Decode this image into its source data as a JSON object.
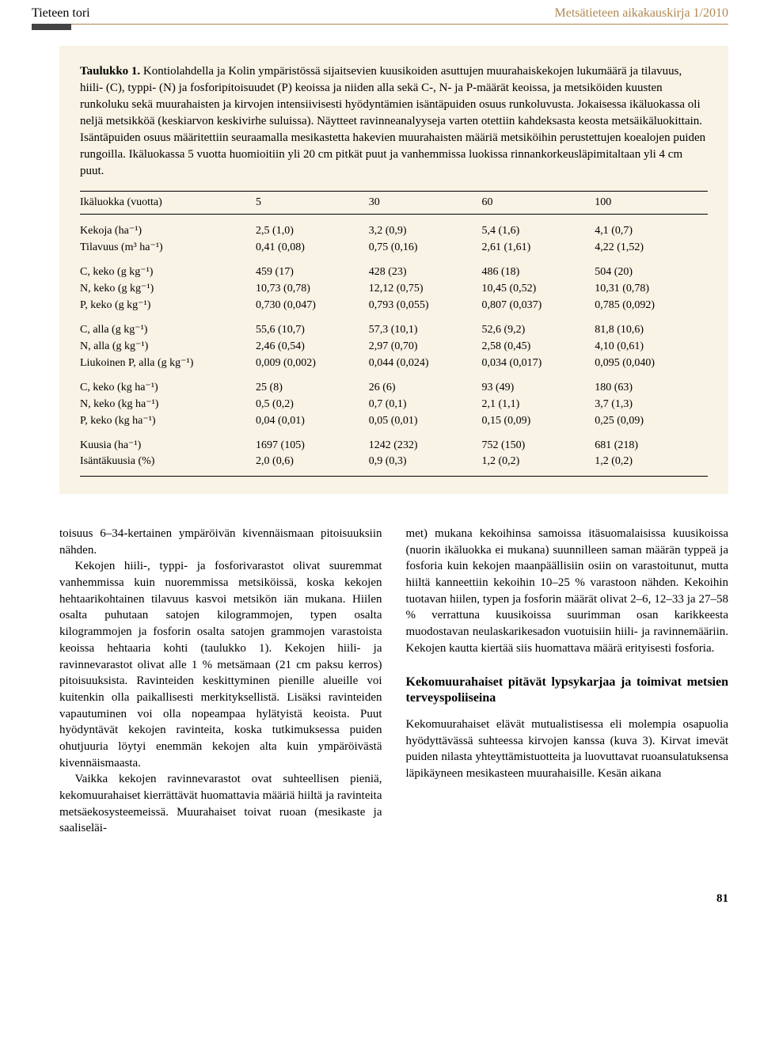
{
  "header": {
    "left": "Tieteen tori",
    "right": "Metsätieteen aikakauskirja 1/2010"
  },
  "table": {
    "caption_label": "Taulukko 1.",
    "caption_text": "Kontiolahdella ja Kolin ympäristössä sijaitsevien kuusikoiden asuttujen muurahaiskekojen lukumäärä ja tilavuus, hiili- (C), typpi- (N) ja fosforipitoisuudet (P) keoissa ja niiden alla sekä C-, N- ja P-määrät keoissa, ja metsiköiden kuusten runkoluku sekä muurahaisten ja kirvojen intensiivisesti hyödyntämien isäntäpuiden osuus runkoluvusta. Jokaisessa ikäluokassa oli neljä metsikköä (keskiarvon keskivirhe suluissa). Näytteet ravinneanalyyseja varten otettiin kahdeksasta keosta metsäikäluokittain. Isäntäpuiden osuus määritettiin seuraamalla mesikastetta hakevien muurahaisten määriä metsiköihin perustettujen koealojen puiden rungoilla. Ikäluokassa 5 vuotta huomioitiin yli 20 cm pitkät puut ja vanhemmissa luokissa rinnankorkeusläpimitaltaan yli 4 cm puut.",
    "header_row": [
      "Ikäluokka (vuotta)",
      "5",
      "30",
      "60",
      "100"
    ],
    "groups": [
      [
        {
          "label": "Kekoja (ha⁻¹)",
          "vals": [
            "2,5 (1,0)",
            "3,2 (0,9)",
            "5,4 (1,6)",
            "4,1 (0,7)"
          ]
        },
        {
          "label": "Tilavuus (m³ ha⁻¹)",
          "vals": [
            "0,41 (0,08)",
            "0,75 (0,16)",
            "2,61 (1,61)",
            "4,22 (1,52)"
          ]
        }
      ],
      [
        {
          "label": "C, keko (g kg⁻¹)",
          "vals": [
            "459 (17)",
            "428 (23)",
            "486 (18)",
            "504 (20)"
          ]
        },
        {
          "label": "N, keko (g kg⁻¹)",
          "vals": [
            "10,73 (0,78)",
            "12,12 (0,75)",
            "10,45 (0,52)",
            "10,31 (0,78)"
          ]
        },
        {
          "label": "P, keko (g kg⁻¹)",
          "vals": [
            "0,730 (0,047)",
            "0,793 (0,055)",
            "0,807 (0,037)",
            "0,785 (0,092)"
          ]
        }
      ],
      [
        {
          "label": "C, alla (g kg⁻¹)",
          "vals": [
            "55,6 (10,7)",
            "57,3 (10,1)",
            "52,6 (9,2)",
            "81,8 (10,6)"
          ]
        },
        {
          "label": "N, alla (g kg⁻¹)",
          "vals": [
            "2,46 (0,54)",
            "2,97 (0,70)",
            "2,58 (0,45)",
            "4,10 (0,61)"
          ]
        },
        {
          "label": "Liukoinen P, alla (g kg⁻¹)",
          "vals": [
            "0,009 (0,002)",
            "0,044 (0,024)",
            "0,034 (0,017)",
            "0,095 (0,040)"
          ]
        }
      ],
      [
        {
          "label": "C, keko (kg ha⁻¹)",
          "vals": [
            "25 (8)",
            "26 (6)",
            "93 (49)",
            "180 (63)"
          ]
        },
        {
          "label": "N, keko (kg ha⁻¹)",
          "vals": [
            "0,5 (0,2)",
            "0,7 (0,1)",
            "2,1 (1,1)",
            "3,7 (1,3)"
          ]
        },
        {
          "label": "P, keko (kg ha⁻¹)",
          "vals": [
            "0,04 (0,01)",
            "0,05 (0,01)",
            "0,15 (0,09)",
            "0,25 (0,09)"
          ]
        }
      ],
      [
        {
          "label": "Kuusia (ha⁻¹)",
          "vals": [
            "1697 (105)",
            "1242 (232)",
            "752 (150)",
            "681 (218)"
          ]
        },
        {
          "label": "Isäntäkuusia (%)",
          "vals": [
            "2,0 (0,6)",
            "0,9 (0,3)",
            "1,2 (0,2)",
            "1,2 (0,2)"
          ]
        }
      ]
    ]
  },
  "body": {
    "left": {
      "p1": "toisuus 6–34-kertainen ympäröivän kivennäismaan pitoisuuksiin nähden.",
      "p2": "Kekojen hiili-, typpi- ja fosforivarastot olivat suuremmat vanhemmissa kuin nuoremmissa metsiköissä, koska kekojen hehtaarikohtainen tilavuus kasvoi metsikön iän mukana. Hiilen osalta puhutaan satojen kilogrammojen, typen osalta kilogrammojen ja fosforin osalta satojen grammojen varastoista keoissa hehtaaria kohti (taulukko 1). Kekojen hiili- ja ravinnevarastot olivat alle 1 % metsämaan (21 cm paksu kerros) pitoisuuksista. Ravinteiden keskittyminen pienille alueille voi kuitenkin olla paikallisesti merkityksellistä. Lisäksi ravinteiden vapautuminen voi olla nopeampaa hylätyistä keoista. Puut hyödyntävät kekojen ravinteita, koska tutkimuksessa puiden ohutjuuria löytyi enemmän kekojen alta kuin ympäröivästä kivennäismaasta.",
      "p3": "Vaikka kekojen ravinnevarastot ovat suhteellisen pieniä, kekomuurahaiset kierrättävät huomattavia määriä hiiltä ja ravinteita metsäekosysteemeissä. Muurahaiset toivat ruoan (mesikaste ja saaliseläi-"
    },
    "right": {
      "p1": "met) mukana kekoihinsa samoissa itäsuomalaisissa kuusikoissa (nuorin ikäluokka ei mukana) suunnilleen saman määrän typpeä ja fosforia kuin kekojen maanpäällisiin osiin on varastoitunut, mutta hiiltä kanneettiin kekoihin 10–25 % varastoon nähden. Kekoihin tuotavan hiilen, typen ja fosforin määrät olivat 2–6, 12–33 ja 27–58 % verrattuna kuusikoissa suurimman osan karikkeesta muodostavan neulaskarikesadon vuotuisiin hiili- ja ravinnemääriin. Kekojen kautta kiertää siis huomattava määrä erityisesti fosforia.",
      "h3": "Kekomuurahaiset pitävät lypsykarjaa ja toimivat metsien terveyspoliiseina",
      "p2": "Kekomuurahaiset elävät mutualistisessa eli molempia osapuolia hyödyttävässä suhteessa kirvojen kanssa (kuva 3). Kirvat imevät puiden nilasta yhteyttämistuotteita ja luovuttavat ruoansulatuksensa läpikäyneen mesikasteen muurahaisille. Kesän aikana"
    }
  },
  "page_number": "81",
  "colors": {
    "box_bg": "#f9f3e6",
    "header_accent": "#b08850",
    "tab": "#444444"
  }
}
